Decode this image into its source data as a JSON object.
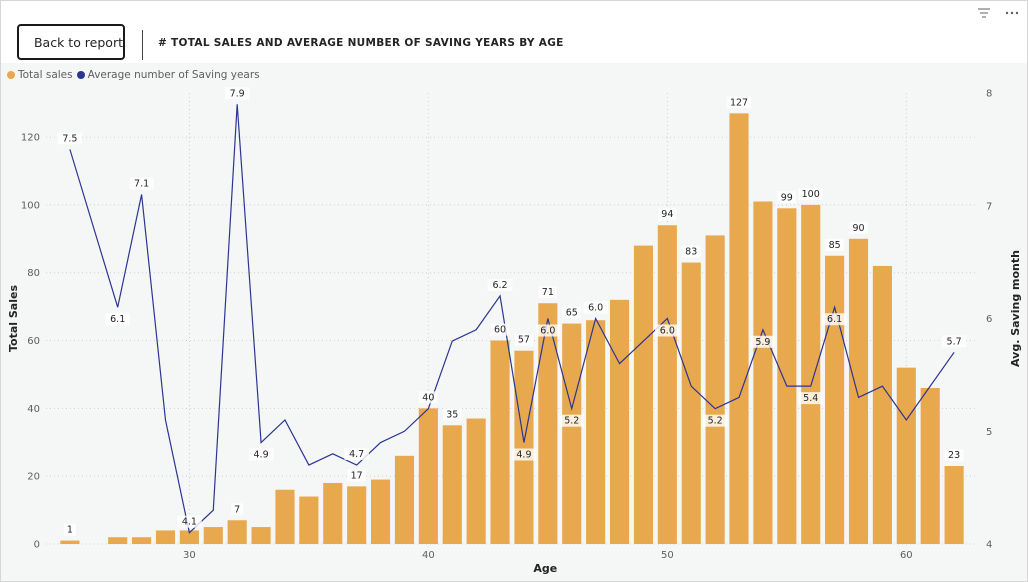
{
  "header": {
    "back_label": "Back to report",
    "title": "# TOTAL SALES AND AVERAGE NUMBER OF SAVING YEARS BY AGE"
  },
  "icons": {
    "back": "chevron-left-icon",
    "filter": "filter-icon",
    "more": "more-options-icon"
  },
  "colors": {
    "bar": "#E8A84E",
    "line": "#2B3593",
    "grid": "#d0d0d0"
  },
  "chart_data": {
    "type": "bar",
    "combo": "bar+line",
    "legend": [
      "Total sales",
      "Average number of Saving years"
    ],
    "legend_position": "top-left",
    "xlabel": "Age",
    "ylabel": "Total Sales",
    "y2label": "Avg. Saving month",
    "xlim": [
      24,
      63
    ],
    "xticks": [
      30,
      40,
      50,
      60
    ],
    "ylim": [
      0,
      133
    ],
    "yticks": [
      0,
      20,
      40,
      60,
      80,
      100,
      120
    ],
    "y2lim": [
      4,
      8
    ],
    "y2ticks": [
      4,
      5,
      6,
      7,
      8
    ],
    "grid": true,
    "series": [
      {
        "name": "Total sales",
        "type": "bar",
        "x": [
          25,
          26,
          27,
          28,
          29,
          30,
          31,
          32,
          33,
          34,
          35,
          36,
          37,
          38,
          39,
          40,
          41,
          42,
          43,
          44,
          45,
          46,
          47,
          48,
          49,
          50,
          51,
          52,
          53,
          54,
          55,
          56,
          57,
          58,
          59,
          60,
          61,
          62
        ],
        "values": [
          1,
          0,
          2,
          2,
          4,
          4,
          5,
          7,
          5,
          16,
          14,
          18,
          17,
          19,
          26,
          40,
          35,
          37,
          60,
          57,
          71,
          65,
          66,
          72,
          88,
          94,
          83,
          91,
          127,
          101,
          99,
          100,
          85,
          90,
          82,
          52,
          46,
          23
        ],
        "labels": [
          "1",
          "",
          "",
          "",
          "",
          "",
          "",
          "7",
          "",
          "",
          "",
          "",
          "17",
          "",
          "",
          "40",
          "35",
          "",
          "60",
          "57",
          "71",
          "65",
          "",
          "",
          "",
          "94",
          "83",
          "",
          "127",
          "",
          "99",
          "100",
          "85",
          "90",
          "",
          "",
          "",
          "23"
        ]
      },
      {
        "name": "Average number of Saving years",
        "type": "line",
        "axis": "y2",
        "x": [
          25,
          27,
          28,
          29,
          30,
          31,
          32,
          33,
          34,
          35,
          36,
          37,
          38,
          39,
          40,
          41,
          42,
          43,
          44,
          45,
          46,
          47,
          48,
          49,
          50,
          51,
          52,
          53,
          54,
          55,
          56,
          57,
          58,
          59,
          60,
          61,
          62
        ],
        "values": [
          7.5,
          6.1,
          7.1,
          5.1,
          4.1,
          4.3,
          7.9,
          4.9,
          5.1,
          4.7,
          4.8,
          4.7,
          4.9,
          5.0,
          5.2,
          5.8,
          5.9,
          6.2,
          4.9,
          6.0,
          5.2,
          6.0,
          5.6,
          5.8,
          6.0,
          5.4,
          5.2,
          5.3,
          5.9,
          5.4,
          5.4,
          6.1,
          5.3,
          5.4,
          5.1,
          5.4,
          5.7
        ],
        "labels": [
          "7.5",
          "6.1",
          "7.1",
          "",
          "4.1",
          "",
          "7.9",
          "4.9",
          "",
          "",
          "",
          "4.7",
          "",
          "",
          "",
          "",
          "",
          "6.2",
          "4.9",
          "6.0",
          "5.2",
          "6.0",
          "",
          "",
          "6.0",
          "",
          "5.2",
          "",
          "5.9",
          "",
          "5.4",
          "6.1",
          "",
          "",
          "",
          "",
          "5.7"
        ],
        "label_below": [
          false,
          true,
          false,
          false,
          false,
          false,
          false,
          true,
          false,
          false,
          false,
          false,
          false,
          false,
          false,
          false,
          false,
          false,
          true,
          true,
          true,
          false,
          false,
          false,
          true,
          false,
          true,
          false,
          true,
          false,
          true,
          true,
          false,
          false,
          false,
          false,
          false
        ]
      }
    ]
  }
}
